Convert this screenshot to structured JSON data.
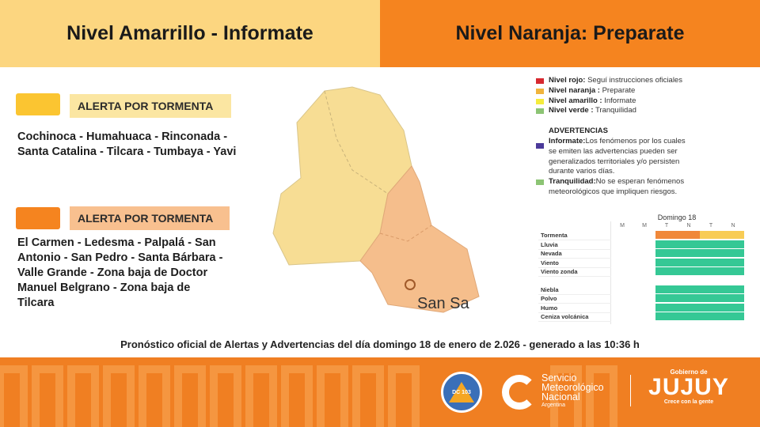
{
  "header": {
    "left_title": "Nivel Amarrillo - Informate",
    "right_title": "Nivel Naranja: Preparate",
    "left_color": "#fcd680",
    "right_color": "#f5841f"
  },
  "alerts": [
    {
      "label": "ALERTA POR TORMENTA",
      "level": "amarillo",
      "color": "#fbc531",
      "tag_color": "#fbe6a2",
      "zones": "Cochinoca - Humahuaca - Rinconada - Santa Catalina - Tilcara - Tumbaya - Yavi"
    },
    {
      "label": "ALERTA POR TORMENTA",
      "level": "naranja",
      "color": "#f5841f",
      "tag_color": "#f8c08f",
      "zones": "El Carmen - Ledesma - Palpalá - San Antonio - San Pedro - Santa Bárbara - Valle Grande - Zona baja de Doctor Manuel Belgrano - Zona baja de Tilcara"
    }
  ],
  "map": {
    "city_label": "San Sa"
  },
  "legend": {
    "levels": [
      {
        "name": "Nivel rojo:",
        "desc": "Seguí instrucciones oficiales",
        "color": "#d7282f"
      },
      {
        "name": "Nivel naranja :",
        "desc": "Preparate",
        "color": "#f0b43c"
      },
      {
        "name": "Nivel amarillo :",
        "desc": "Informate",
        "color": "#f5ec3c"
      },
      {
        "name": "Nivel verde :",
        "desc": "Tranquilidad",
        "color": "#8cc474"
      }
    ],
    "warnings_title": "ADVERTENCIAS",
    "warnings": [
      {
        "name": "Informate:",
        "desc": "Los fenómenos por los cuales se emiten las advertencias pueden ser generalizados territoriales y/o persisten durante varios días.",
        "color": "#4b3a9a"
      },
      {
        "name": "Tranquilidad:",
        "desc": "No se esperan fenómenos meteorológicos que impliquen riesgos.",
        "color": "#8cc474"
      }
    ]
  },
  "forecast_table": {
    "day": "Domingo 18",
    "columns": [
      "M",
      "M",
      "T",
      "N",
      "T",
      "N"
    ],
    "rows": [
      {
        "label": "Tormenta",
        "cells": [
          "",
          "",
          "#f0883a",
          "#f0883a",
          "#f8cc55",
          "#f8cc55"
        ]
      },
      {
        "label": "Lluvia",
        "cells": [
          "",
          "",
          "#35c895",
          "#35c895",
          "#35c895",
          "#35c895"
        ]
      },
      {
        "label": "Nevada",
        "cells": [
          "",
          "",
          "#35c895",
          "#35c895",
          "#35c895",
          "#35c895"
        ]
      },
      {
        "label": "Viento",
        "cells": [
          "",
          "",
          "#35c895",
          "#35c895",
          "#35c895",
          "#35c895"
        ]
      },
      {
        "label": "Viento zonda",
        "cells": [
          "",
          "",
          "#35c895",
          "#35c895",
          "#35c895",
          "#35c895"
        ]
      },
      {
        "label": "Niebla",
        "cells": [
          "",
          "",
          "#35c895",
          "#35c895",
          "#35c895",
          "#35c895"
        ]
      },
      {
        "label": "Polvo",
        "cells": [
          "",
          "",
          "#35c895",
          "#35c895",
          "#35c895",
          "#35c895"
        ]
      },
      {
        "label": "Humo",
        "cells": [
          "",
          "",
          "#35c895",
          "#35c895",
          "#35c895",
          "#35c895"
        ]
      },
      {
        "label": "Ceniza volcánica",
        "cells": [
          "",
          "",
          "#35c895",
          "#35c895",
          "#35c895",
          "#35c895"
        ]
      }
    ]
  },
  "footer": {
    "forecast_line": "Pronóstico oficial de Alertas y Advertencias del día domingo 18 de enero de 2.026 - generado a las 10:36 h",
    "dc_logo": "DC 103",
    "smn_line1": "Servicio",
    "smn_line2": "Meteorológico",
    "smn_line3": "Nacional",
    "smn_line4": "Argentina",
    "jujuy_top": "Gobierno de",
    "jujuy_name": "JUJUY",
    "jujuy_slogan": "Crece con la gente"
  }
}
